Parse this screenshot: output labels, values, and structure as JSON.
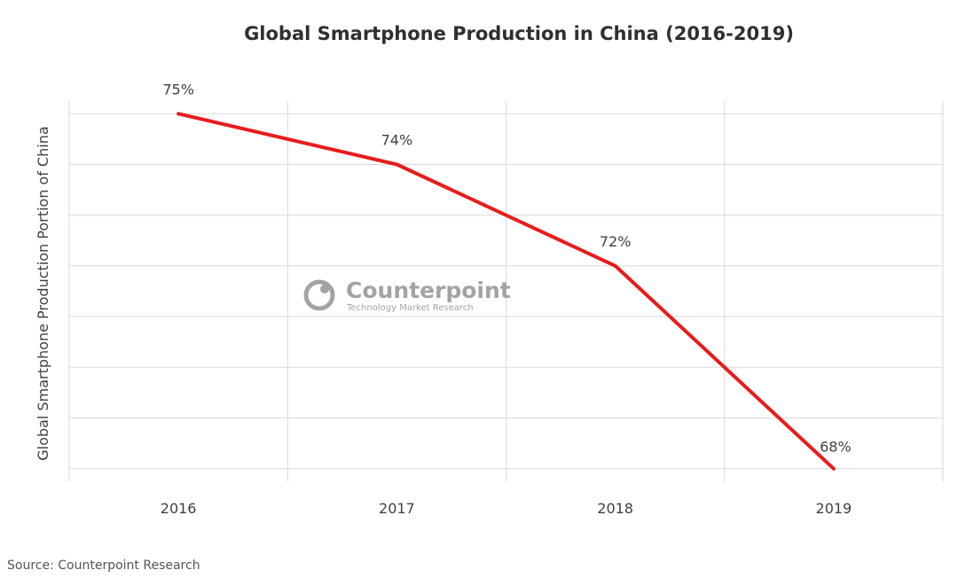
{
  "chart_data": {
    "type": "line",
    "title": "Global Smartphone Production in China (2016-2019)",
    "xlabel": "",
    "ylabel": "Global Smartphone Production Portion of China",
    "categories": [
      "2016",
      "2017",
      "2018",
      "2019"
    ],
    "series": [
      {
        "values": [
          75,
          74,
          72,
          68
        ],
        "data_labels": [
          "75%",
          "74%",
          "72%",
          "68%"
        ],
        "color": "#e81c1c"
      }
    ],
    "ylim": [
      67.75,
      75.25
    ],
    "grid": true,
    "legend": "none",
    "y_tick_labels_shown": false
  },
  "watermark": {
    "name": "Counterpoint",
    "tagline": "Technology Market Research",
    "icon": "counterpoint-logo-icon",
    "color": "#9a9a9a"
  },
  "source_note": "Source: Counterpoint Research"
}
